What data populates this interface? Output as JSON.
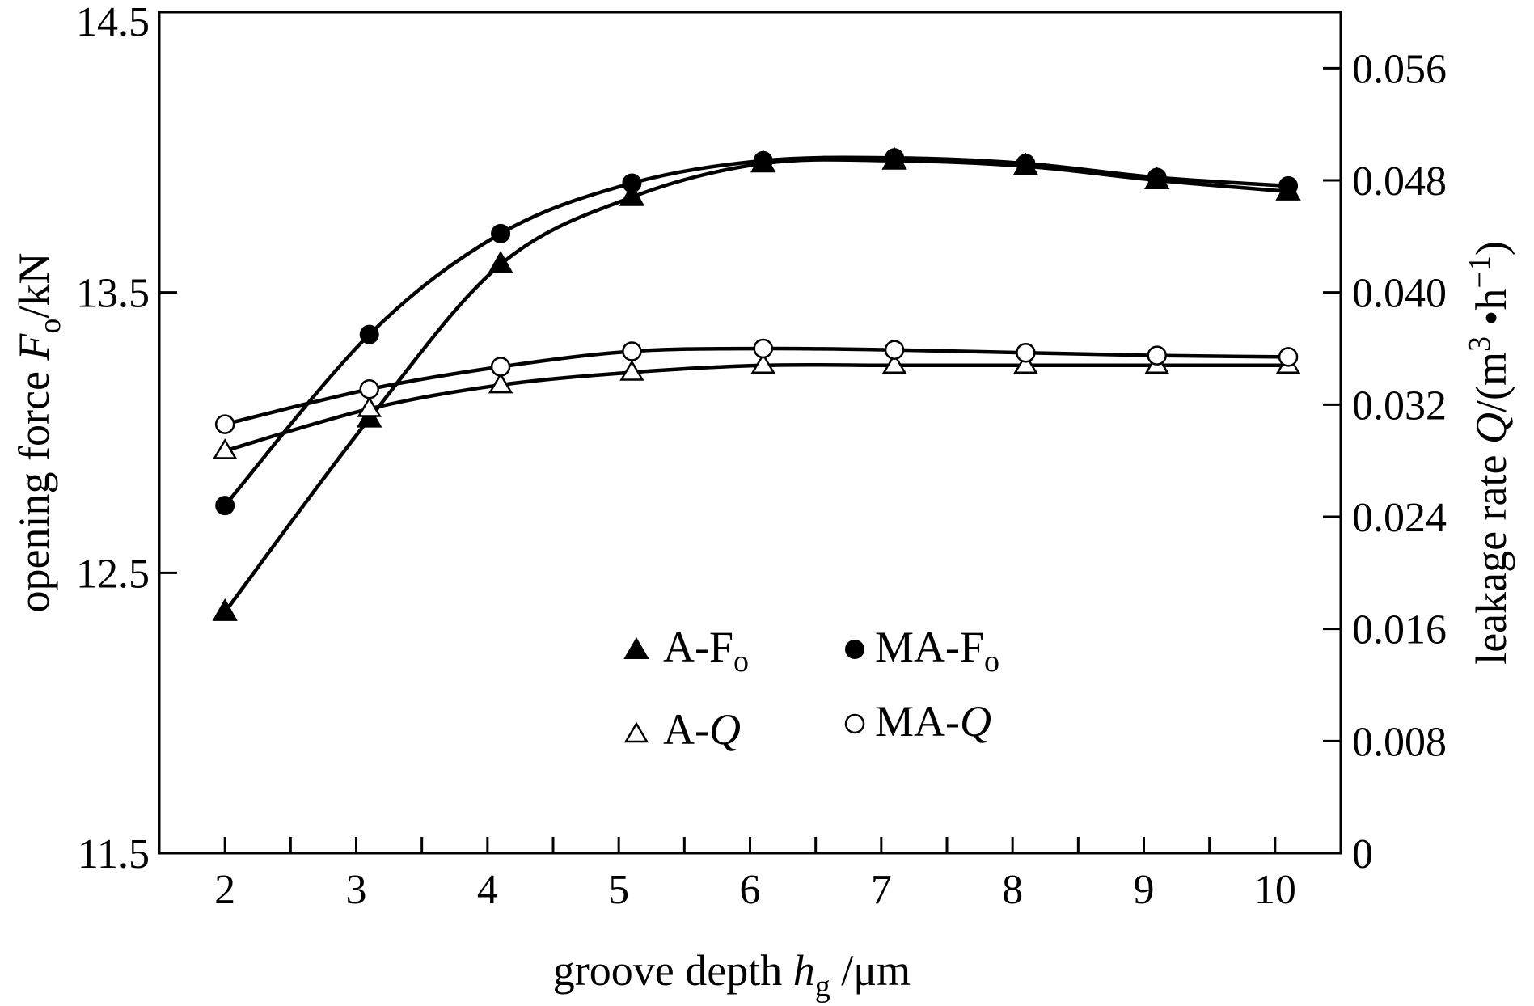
{
  "chart_data": {
    "type": "line",
    "x": [
      2,
      3,
      4,
      5,
      6,
      7,
      8,
      9,
      10
    ],
    "xlabel": {
      "text": "groove depth ",
      "symbol": "h",
      "sub": "g",
      "unit": " /μm"
    },
    "ylabel_left": {
      "text": "opening force ",
      "symbol": "F",
      "sub": "o",
      "unit": "/kN"
    },
    "ylabel_right": {
      "text": "leakage rate ",
      "symbol": "Q",
      "unit": "/(m",
      "sup1": "3",
      "mid": " •h",
      "sup2": "−1",
      "close": ")"
    },
    "xlim": [
      1.5,
      10.5
    ],
    "ylim_left": [
      11.5,
      14.5
    ],
    "ylim_right": [
      0,
      0.06
    ],
    "x_ticks": [
      "2",
      "3",
      "4",
      "5",
      "6",
      "7",
      "8",
      "9",
      "10"
    ],
    "y_left_ticks": [
      "11.5",
      "12.5",
      "13.5",
      "14.5"
    ],
    "y_right_ticks": [
      "0",
      "0.008",
      "0.016",
      "0.024",
      "0.032",
      "0.040",
      "0.048",
      "0.056"
    ],
    "grid": false,
    "legend_position": "center",
    "series": [
      {
        "name": "A-F",
        "sub": "o",
        "axis": "left",
        "marker": "triangle-filled",
        "x": [
          2,
          3.1,
          4.1,
          5.1,
          6.1,
          7.1,
          8.1,
          9.1,
          10.1
        ],
        "values": [
          12.36,
          13.05,
          13.6,
          13.84,
          13.96,
          13.97,
          13.95,
          13.9,
          13.86
        ]
      },
      {
        "name": "MA-F",
        "sub": "o",
        "axis": "left",
        "marker": "circle-filled",
        "x": [
          2,
          3.1,
          4.1,
          5.1,
          6.1,
          7.1,
          8.1,
          9.1,
          10.1
        ],
        "values": [
          12.74,
          13.35,
          13.71,
          13.89,
          13.97,
          13.98,
          13.96,
          13.91,
          13.88
        ]
      },
      {
        "name": "A-",
        "symbol": "Q",
        "axis": "right",
        "marker": "triangle-open",
        "x": [
          2,
          3.1,
          4.1,
          5.1,
          6.1,
          7.1,
          8.1,
          9.1,
          10.1
        ],
        "values": [
          0.0287,
          0.0317,
          0.0334,
          0.0343,
          0.0348,
          0.0348,
          0.0348,
          0.0348,
          0.0348
        ]
      },
      {
        "name": "MA-",
        "symbol": "Q",
        "axis": "right",
        "marker": "circle-open",
        "x": [
          2,
          3.1,
          4.1,
          5.1,
          6.1,
          7.1,
          8.1,
          9.1,
          10.1
        ],
        "values": [
          0.0306,
          0.0331,
          0.0347,
          0.0358,
          0.036,
          0.0359,
          0.0357,
          0.0355,
          0.0354
        ]
      }
    ]
  }
}
